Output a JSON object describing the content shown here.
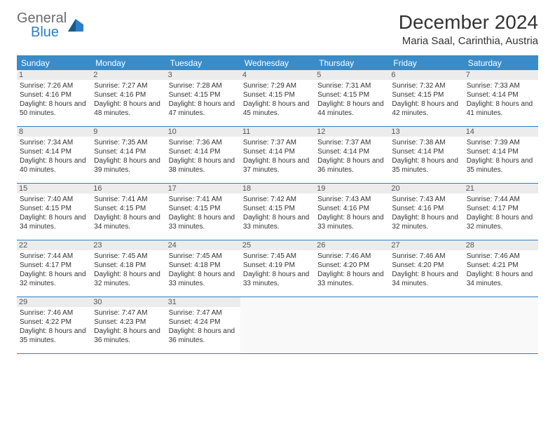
{
  "logo": {
    "text1": "General",
    "text2": "Blue"
  },
  "title": "December 2024",
  "location": "Maria Saal, Carinthia, Austria",
  "day_header_bg": "#3a8cc9",
  "border_color": "#2d7fc7",
  "daynum_bg": "#ececec",
  "days_of_week": [
    "Sunday",
    "Monday",
    "Tuesday",
    "Wednesday",
    "Thursday",
    "Friday",
    "Saturday"
  ],
  "weeks": [
    [
      {
        "num": "1",
        "sunrise": "Sunrise: 7:26 AM",
        "sunset": "Sunset: 4:16 PM",
        "daylight": "Daylight: 8 hours and 50 minutes."
      },
      {
        "num": "2",
        "sunrise": "Sunrise: 7:27 AM",
        "sunset": "Sunset: 4:16 PM",
        "daylight": "Daylight: 8 hours and 48 minutes."
      },
      {
        "num": "3",
        "sunrise": "Sunrise: 7:28 AM",
        "sunset": "Sunset: 4:15 PM",
        "daylight": "Daylight: 8 hours and 47 minutes."
      },
      {
        "num": "4",
        "sunrise": "Sunrise: 7:29 AM",
        "sunset": "Sunset: 4:15 PM",
        "daylight": "Daylight: 8 hours and 45 minutes."
      },
      {
        "num": "5",
        "sunrise": "Sunrise: 7:31 AM",
        "sunset": "Sunset: 4:15 PM",
        "daylight": "Daylight: 8 hours and 44 minutes."
      },
      {
        "num": "6",
        "sunrise": "Sunrise: 7:32 AM",
        "sunset": "Sunset: 4:15 PM",
        "daylight": "Daylight: 8 hours and 42 minutes."
      },
      {
        "num": "7",
        "sunrise": "Sunrise: 7:33 AM",
        "sunset": "Sunset: 4:14 PM",
        "daylight": "Daylight: 8 hours and 41 minutes."
      }
    ],
    [
      {
        "num": "8",
        "sunrise": "Sunrise: 7:34 AM",
        "sunset": "Sunset: 4:14 PM",
        "daylight": "Daylight: 8 hours and 40 minutes."
      },
      {
        "num": "9",
        "sunrise": "Sunrise: 7:35 AM",
        "sunset": "Sunset: 4:14 PM",
        "daylight": "Daylight: 8 hours and 39 minutes."
      },
      {
        "num": "10",
        "sunrise": "Sunrise: 7:36 AM",
        "sunset": "Sunset: 4:14 PM",
        "daylight": "Daylight: 8 hours and 38 minutes."
      },
      {
        "num": "11",
        "sunrise": "Sunrise: 7:37 AM",
        "sunset": "Sunset: 4:14 PM",
        "daylight": "Daylight: 8 hours and 37 minutes."
      },
      {
        "num": "12",
        "sunrise": "Sunrise: 7:37 AM",
        "sunset": "Sunset: 4:14 PM",
        "daylight": "Daylight: 8 hours and 36 minutes."
      },
      {
        "num": "13",
        "sunrise": "Sunrise: 7:38 AM",
        "sunset": "Sunset: 4:14 PM",
        "daylight": "Daylight: 8 hours and 35 minutes."
      },
      {
        "num": "14",
        "sunrise": "Sunrise: 7:39 AM",
        "sunset": "Sunset: 4:14 PM",
        "daylight": "Daylight: 8 hours and 35 minutes."
      }
    ],
    [
      {
        "num": "15",
        "sunrise": "Sunrise: 7:40 AM",
        "sunset": "Sunset: 4:15 PM",
        "daylight": "Daylight: 8 hours and 34 minutes."
      },
      {
        "num": "16",
        "sunrise": "Sunrise: 7:41 AM",
        "sunset": "Sunset: 4:15 PM",
        "daylight": "Daylight: 8 hours and 34 minutes."
      },
      {
        "num": "17",
        "sunrise": "Sunrise: 7:41 AM",
        "sunset": "Sunset: 4:15 PM",
        "daylight": "Daylight: 8 hours and 33 minutes."
      },
      {
        "num": "18",
        "sunrise": "Sunrise: 7:42 AM",
        "sunset": "Sunset: 4:15 PM",
        "daylight": "Daylight: 8 hours and 33 minutes."
      },
      {
        "num": "19",
        "sunrise": "Sunrise: 7:43 AM",
        "sunset": "Sunset: 4:16 PM",
        "daylight": "Daylight: 8 hours and 33 minutes."
      },
      {
        "num": "20",
        "sunrise": "Sunrise: 7:43 AM",
        "sunset": "Sunset: 4:16 PM",
        "daylight": "Daylight: 8 hours and 32 minutes."
      },
      {
        "num": "21",
        "sunrise": "Sunrise: 7:44 AM",
        "sunset": "Sunset: 4:17 PM",
        "daylight": "Daylight: 8 hours and 32 minutes."
      }
    ],
    [
      {
        "num": "22",
        "sunrise": "Sunrise: 7:44 AM",
        "sunset": "Sunset: 4:17 PM",
        "daylight": "Daylight: 8 hours and 32 minutes."
      },
      {
        "num": "23",
        "sunrise": "Sunrise: 7:45 AM",
        "sunset": "Sunset: 4:18 PM",
        "daylight": "Daylight: 8 hours and 32 minutes."
      },
      {
        "num": "24",
        "sunrise": "Sunrise: 7:45 AM",
        "sunset": "Sunset: 4:18 PM",
        "daylight": "Daylight: 8 hours and 33 minutes."
      },
      {
        "num": "25",
        "sunrise": "Sunrise: 7:45 AM",
        "sunset": "Sunset: 4:19 PM",
        "daylight": "Daylight: 8 hours and 33 minutes."
      },
      {
        "num": "26",
        "sunrise": "Sunrise: 7:46 AM",
        "sunset": "Sunset: 4:20 PM",
        "daylight": "Daylight: 8 hours and 33 minutes."
      },
      {
        "num": "27",
        "sunrise": "Sunrise: 7:46 AM",
        "sunset": "Sunset: 4:20 PM",
        "daylight": "Daylight: 8 hours and 34 minutes."
      },
      {
        "num": "28",
        "sunrise": "Sunrise: 7:46 AM",
        "sunset": "Sunset: 4:21 PM",
        "daylight": "Daylight: 8 hours and 34 minutes."
      }
    ],
    [
      {
        "num": "29",
        "sunrise": "Sunrise: 7:46 AM",
        "sunset": "Sunset: 4:22 PM",
        "daylight": "Daylight: 8 hours and 35 minutes."
      },
      {
        "num": "30",
        "sunrise": "Sunrise: 7:47 AM",
        "sunset": "Sunset: 4:23 PM",
        "daylight": "Daylight: 8 hours and 36 minutes."
      },
      {
        "num": "31",
        "sunrise": "Sunrise: 7:47 AM",
        "sunset": "Sunset: 4:24 PM",
        "daylight": "Daylight: 8 hours and 36 minutes."
      },
      null,
      null,
      null,
      null
    ]
  ]
}
